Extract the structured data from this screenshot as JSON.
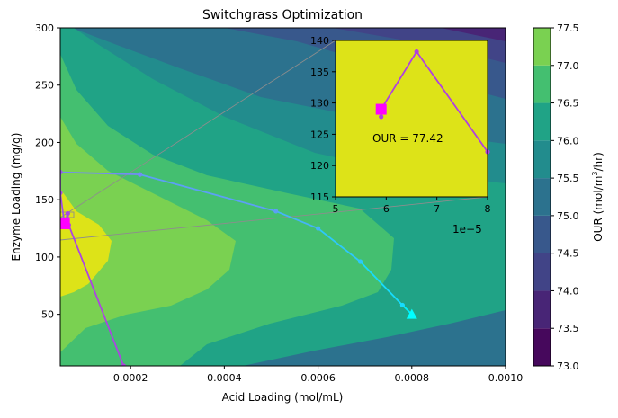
{
  "chart_data": {
    "type": "contour",
    "title": "Switchgrass Optimization",
    "xlabel": "Acid Loading (mol/mL)",
    "ylabel": "Enzyme Loading (mg/g)",
    "xlim": [
      5e-05,
      0.001
    ],
    "ylim": [
      5,
      300
    ],
    "xticks": [
      {
        "value": 0.0002,
        "label": "0.0002"
      },
      {
        "value": 0.0004,
        "label": "0.0004"
      },
      {
        "value": 0.0006,
        "label": "0.0006"
      },
      {
        "value": 0.0008,
        "label": "0.0008"
      },
      {
        "value": 0.001,
        "label": "0.0010"
      }
    ],
    "yticks": [
      50,
      100,
      150,
      200,
      250,
      300
    ],
    "colorbar": {
      "label_main": "OUR (mol/m",
      "label_sup": "3",
      "label_tail": "/hr)",
      "levels": [
        73.0,
        73.5,
        74.0,
        74.5,
        75.0,
        75.5,
        76.0,
        76.5,
        77.0,
        77.5
      ],
      "tick_labels": [
        "73.0",
        "73.5",
        "74.0",
        "74.5",
        "75.0",
        "75.5",
        "76.0",
        "76.5",
        "77.0",
        "77.5"
      ],
      "colors": [
        "#46085c",
        "#482576",
        "#414487",
        "#38588c",
        "#2c728e",
        "#228c8d",
        "#20a386",
        "#44bf70",
        "#7ad151",
        "#dde318"
      ]
    },
    "path_cyan": [
      {
        "x": 0.0008,
        "y": 50
      },
      {
        "x": 0.00078,
        "y": 58
      },
      {
        "x": 0.00069,
        "y": 96
      },
      {
        "x": 0.0006,
        "y": 125
      },
      {
        "x": 0.00051,
        "y": 140
      },
      {
        "x": 0.00022,
        "y": 172
      },
      {
        "x": 5e-05,
        "y": 174
      }
    ],
    "path_purple": [
      {
        "x": 5e-05,
        "y": 174
      },
      {
        "x": 5e-05,
        "y": 156
      },
      {
        "x": 5.9e-05,
        "y": 129
      },
      {
        "x": 6.6e-05,
        "y": 138
      },
      {
        "x": 6.8e-05,
        "y": 128
      },
      {
        "x": 0.000185,
        "y": 5
      }
    ],
    "start_marker": {
      "x": 0.0008,
      "y": 50,
      "color": "#00ffff"
    },
    "end_marker": {
      "x": 5.9e-05,
      "y": 129,
      "color": "#ff00ff"
    },
    "inset": {
      "xlim": [
        5,
        8
      ],
      "ylim": [
        115,
        140
      ],
      "xticks": [
        5,
        6,
        7,
        8
      ],
      "yticks": [
        115,
        120,
        125,
        130,
        135,
        140
      ],
      "x_multiplier": "1e−5",
      "annotation": "OUR = 77.42",
      "background": "#dde318",
      "path": [
        {
          "x": 5.9,
          "y": 127.8
        },
        {
          "x": 5.9,
          "y": 129.0
        },
        {
          "x": 6.6,
          "y": 138.2
        },
        {
          "x": 8.0,
          "y": 122.2
        }
      ],
      "marker": {
        "x": 5.9,
        "y": 129.0
      }
    }
  }
}
